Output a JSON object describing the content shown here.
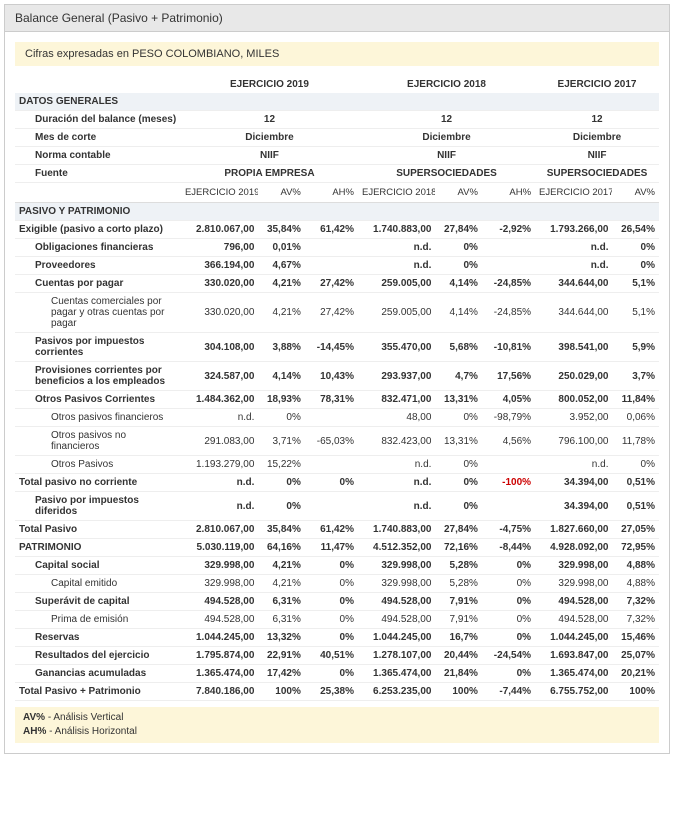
{
  "title": "Balance General (Pasivo + Patrimonio)",
  "currency_note": "Cifras expresadas en PESO COLOMBIANO, MILES",
  "year_headers": [
    "EJERCICIO 2019",
    "EJERCICIO 2018",
    "EJERCICIO 2017"
  ],
  "col_headers": {
    "y2019": "EJERCICIO 2019",
    "y2018": "EJERCICIO 2018",
    "y2017": "EJERCICIO 2017",
    "av": "AV%",
    "ah": "AH%"
  },
  "sections": {
    "datos": "DATOS GENERALES",
    "pasivo": "PASIVO Y PATRIMONIO"
  },
  "general": [
    {
      "label": "Duración del balance (meses)",
      "v": [
        "12",
        "12",
        "12"
      ]
    },
    {
      "label": "Mes de corte",
      "v": [
        "Diciembre",
        "Diciembre",
        "Diciembre"
      ]
    },
    {
      "label": "Norma contable",
      "v": [
        "NIIF",
        "NIIF",
        "NIIF"
      ]
    },
    {
      "label": "Fuente",
      "v": [
        "PROPIA EMPRESA",
        "SUPERSOCIEDADES",
        "SUPERSOCIEDADES"
      ]
    }
  ],
  "rows": [
    {
      "label": "Exigible (pasivo a corto plazo)",
      "bold": true,
      "indent": 0,
      "c": [
        "2.810.067,00",
        "35,84%",
        "61,42%",
        "1.740.883,00",
        "27,84%",
        "-2,92%",
        "1.793.266,00",
        "26,54%"
      ]
    },
    {
      "label": "Obligaciones financieras",
      "bold": true,
      "indent": 1,
      "c": [
        "796,00",
        "0,01%",
        "",
        "n.d.",
        "0%",
        "",
        "n.d.",
        "0%"
      ]
    },
    {
      "label": "Proveedores",
      "bold": true,
      "indent": 1,
      "c": [
        "366.194,00",
        "4,67%",
        "",
        "n.d.",
        "0%",
        "",
        "n.d.",
        "0%"
      ]
    },
    {
      "label": "Cuentas por pagar",
      "bold": true,
      "indent": 1,
      "c": [
        "330.020,00",
        "4,21%",
        "27,42%",
        "259.005,00",
        "4,14%",
        "-24,85%",
        "344.644,00",
        "5,1%"
      ]
    },
    {
      "label": "Cuentas comerciales por pagar y otras cuentas por pagar",
      "bold": false,
      "indent": 2,
      "c": [
        "330.020,00",
        "4,21%",
        "27,42%",
        "259.005,00",
        "4,14%",
        "-24,85%",
        "344.644,00",
        "5,1%"
      ]
    },
    {
      "label": "Pasivos por impuestos corrientes",
      "bold": true,
      "indent": 1,
      "c": [
        "304.108,00",
        "3,88%",
        "-14,45%",
        "355.470,00",
        "5,68%",
        "-10,81%",
        "398.541,00",
        "5,9%"
      ]
    },
    {
      "label": "Provisiones corrientes por beneficios a los empleados",
      "bold": true,
      "indent": 1,
      "c": [
        "324.587,00",
        "4,14%",
        "10,43%",
        "293.937,00",
        "4,7%",
        "17,56%",
        "250.029,00",
        "3,7%"
      ]
    },
    {
      "label": "Otros Pasivos Corrientes",
      "bold": true,
      "indent": 1,
      "c": [
        "1.484.362,00",
        "18,93%",
        "78,31%",
        "832.471,00",
        "13,31%",
        "4,05%",
        "800.052,00",
        "11,84%"
      ]
    },
    {
      "label": "Otros pasivos financieros",
      "bold": false,
      "indent": 2,
      "c": [
        "n.d.",
        "0%",
        "",
        "48,00",
        "0%",
        "-98,79%",
        "3.952,00",
        "0,06%"
      ]
    },
    {
      "label": "Otros pasivos no financieros",
      "bold": false,
      "indent": 2,
      "c": [
        "291.083,00",
        "3,71%",
        "-65,03%",
        "832.423,00",
        "13,31%",
        "4,56%",
        "796.100,00",
        "11,78%"
      ]
    },
    {
      "label": "Otros Pasivos",
      "bold": false,
      "indent": 2,
      "c": [
        "1.193.279,00",
        "15,22%",
        "",
        "n.d.",
        "0%",
        "",
        "n.d.",
        "0%"
      ]
    },
    {
      "label": "Total pasivo no corriente",
      "bold": true,
      "indent": 0,
      "c": [
        "n.d.",
        "0%",
        "0%",
        "n.d.",
        "0%",
        "-100%",
        "34.394,00",
        "0,51%"
      ],
      "neg": [
        5
      ]
    },
    {
      "label": "Pasivo por impuestos diferidos",
      "bold": true,
      "indent": 1,
      "c": [
        "n.d.",
        "0%",
        "",
        "n.d.",
        "0%",
        "",
        "34.394,00",
        "0,51%"
      ]
    },
    {
      "label": "Total Pasivo",
      "bold": true,
      "indent": 0,
      "c": [
        "2.810.067,00",
        "35,84%",
        "61,42%",
        "1.740.883,00",
        "27,84%",
        "-4,75%",
        "1.827.660,00",
        "27,05%"
      ]
    },
    {
      "label": "PATRIMONIO",
      "bold": true,
      "indent": 0,
      "c": [
        "5.030.119,00",
        "64,16%",
        "11,47%",
        "4.512.352,00",
        "72,16%",
        "-8,44%",
        "4.928.092,00",
        "72,95%"
      ]
    },
    {
      "label": "Capital social",
      "bold": true,
      "indent": 1,
      "c": [
        "329.998,00",
        "4,21%",
        "0%",
        "329.998,00",
        "5,28%",
        "0%",
        "329.998,00",
        "4,88%"
      ]
    },
    {
      "label": "Capital emitido",
      "bold": false,
      "indent": 2,
      "c": [
        "329.998,00",
        "4,21%",
        "0%",
        "329.998,00",
        "5,28%",
        "0%",
        "329.998,00",
        "4,88%"
      ]
    },
    {
      "label": "Superávit de capital",
      "bold": true,
      "indent": 1,
      "c": [
        "494.528,00",
        "6,31%",
        "0%",
        "494.528,00",
        "7,91%",
        "0%",
        "494.528,00",
        "7,32%"
      ]
    },
    {
      "label": "Prima de emisión",
      "bold": false,
      "indent": 2,
      "c": [
        "494.528,00",
        "6,31%",
        "0%",
        "494.528,00",
        "7,91%",
        "0%",
        "494.528,00",
        "7,32%"
      ]
    },
    {
      "label": "Reservas",
      "bold": true,
      "indent": 1,
      "c": [
        "1.044.245,00",
        "13,32%",
        "0%",
        "1.044.245,00",
        "16,7%",
        "0%",
        "1.044.245,00",
        "15,46%"
      ]
    },
    {
      "label": "Resultados del ejercicio",
      "bold": true,
      "indent": 1,
      "c": [
        "1.795.874,00",
        "22,91%",
        "40,51%",
        "1.278.107,00",
        "20,44%",
        "-24,54%",
        "1.693.847,00",
        "25,07%"
      ]
    },
    {
      "label": "Ganancias acumuladas",
      "bold": true,
      "indent": 1,
      "c": [
        "1.365.474,00",
        "17,42%",
        "0%",
        "1.365.474,00",
        "21,84%",
        "0%",
        "1.365.474,00",
        "20,21%"
      ]
    },
    {
      "label": "Total Pasivo + Patrimonio",
      "bold": true,
      "indent": 0,
      "c": [
        "7.840.186,00",
        "100%",
        "25,38%",
        "6.253.235,00",
        "100%",
        "-7,44%",
        "6.755.752,00",
        "100%"
      ]
    }
  ],
  "legend": {
    "av_label": "AV%",
    "av_text": " - Análisis Vertical",
    "ah_label": "AH%",
    "ah_text": " - Análisis Horizontal"
  }
}
